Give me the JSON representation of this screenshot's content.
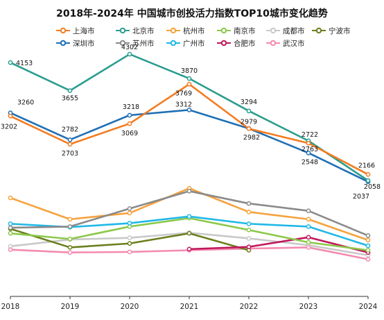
{
  "chart_data": {
    "type": "line",
    "title": "2018年-2024年 中国城市创投活力指数TOP10城市变化趋势",
    "x": [
      "2018",
      "2019",
      "2020",
      "2021",
      "2022",
      "2023",
      "2024"
    ],
    "xlabel": "",
    "ylabel": "",
    "ylim": [
      0,
      4500
    ],
    "grid": false,
    "legend_position": "top",
    "series": [
      {
        "name": "上海市",
        "color": "#f47b20",
        "values": [
          3202,
          2703,
          3069,
          3769,
          2979,
          2722,
          2166
        ],
        "labels": [
          "3202",
          "2703",
          "3069",
          "3769",
          "2979",
          "2722",
          "2166"
        ]
      },
      {
        "name": "北京市",
        "color": "#2a9d8f",
        "values": [
          4153,
          3655,
          4302,
          3870,
          3294,
          2763,
          2058
        ],
        "labels": [
          "4153",
          "3655",
          "4302",
          "3870",
          "3294",
          "2763",
          "2058"
        ]
      },
      {
        "name": "杭州市",
        "color": "#f6a23c",
        "values": [
          1750,
          1370,
          1480,
          1920,
          1500,
          1370,
          1000
        ],
        "labels": []
      },
      {
        "name": "南京市",
        "color": "#8cc84b",
        "values": [
          1120,
          1020,
          1240,
          1390,
          1180,
          960,
          820
        ],
        "labels": []
      },
      {
        "name": "成都市",
        "color": "#c9c9c9",
        "values": [
          890,
          1010,
          1040,
          1130,
          1030,
          910,
          730
        ],
        "labels": []
      },
      {
        "name": "宁波市",
        "color": "#6b7f1e",
        "values": [
          1200,
          870,
          940,
          1120,
          820,
          null,
          null
        ],
        "labels": []
      },
      {
        "name": "深圳市",
        "color": "#1f6fb5",
        "values": [
          3260,
          2782,
          3218,
          3312,
          2982,
          2548,
          2037
        ],
        "labels": [
          "3260",
          "2782",
          "3218",
          "3312",
          "2982",
          "2548",
          "2037"
        ]
      },
      {
        "name": "苏州市",
        "color": "#8a8a8a",
        "values": [
          1220,
          1240,
          1560,
          1870,
          1650,
          1520,
          1080
        ],
        "labels": []
      },
      {
        "name": "广州市",
        "color": "#20b8e6",
        "values": [
          1290,
          1230,
          1300,
          1420,
          1290,
          1240,
          900
        ],
        "labels": []
      },
      {
        "name": "合肥市",
        "color": "#c0185c",
        "values": [
          null,
          null,
          null,
          840,
          880,
          1050,
          780
        ],
        "labels": []
      },
      {
        "name": "武汉市",
        "color": "#f48bb0",
        "values": [
          830,
          780,
          790,
          820,
          850,
          870,
          660
        ],
        "labels": []
      }
    ]
  }
}
